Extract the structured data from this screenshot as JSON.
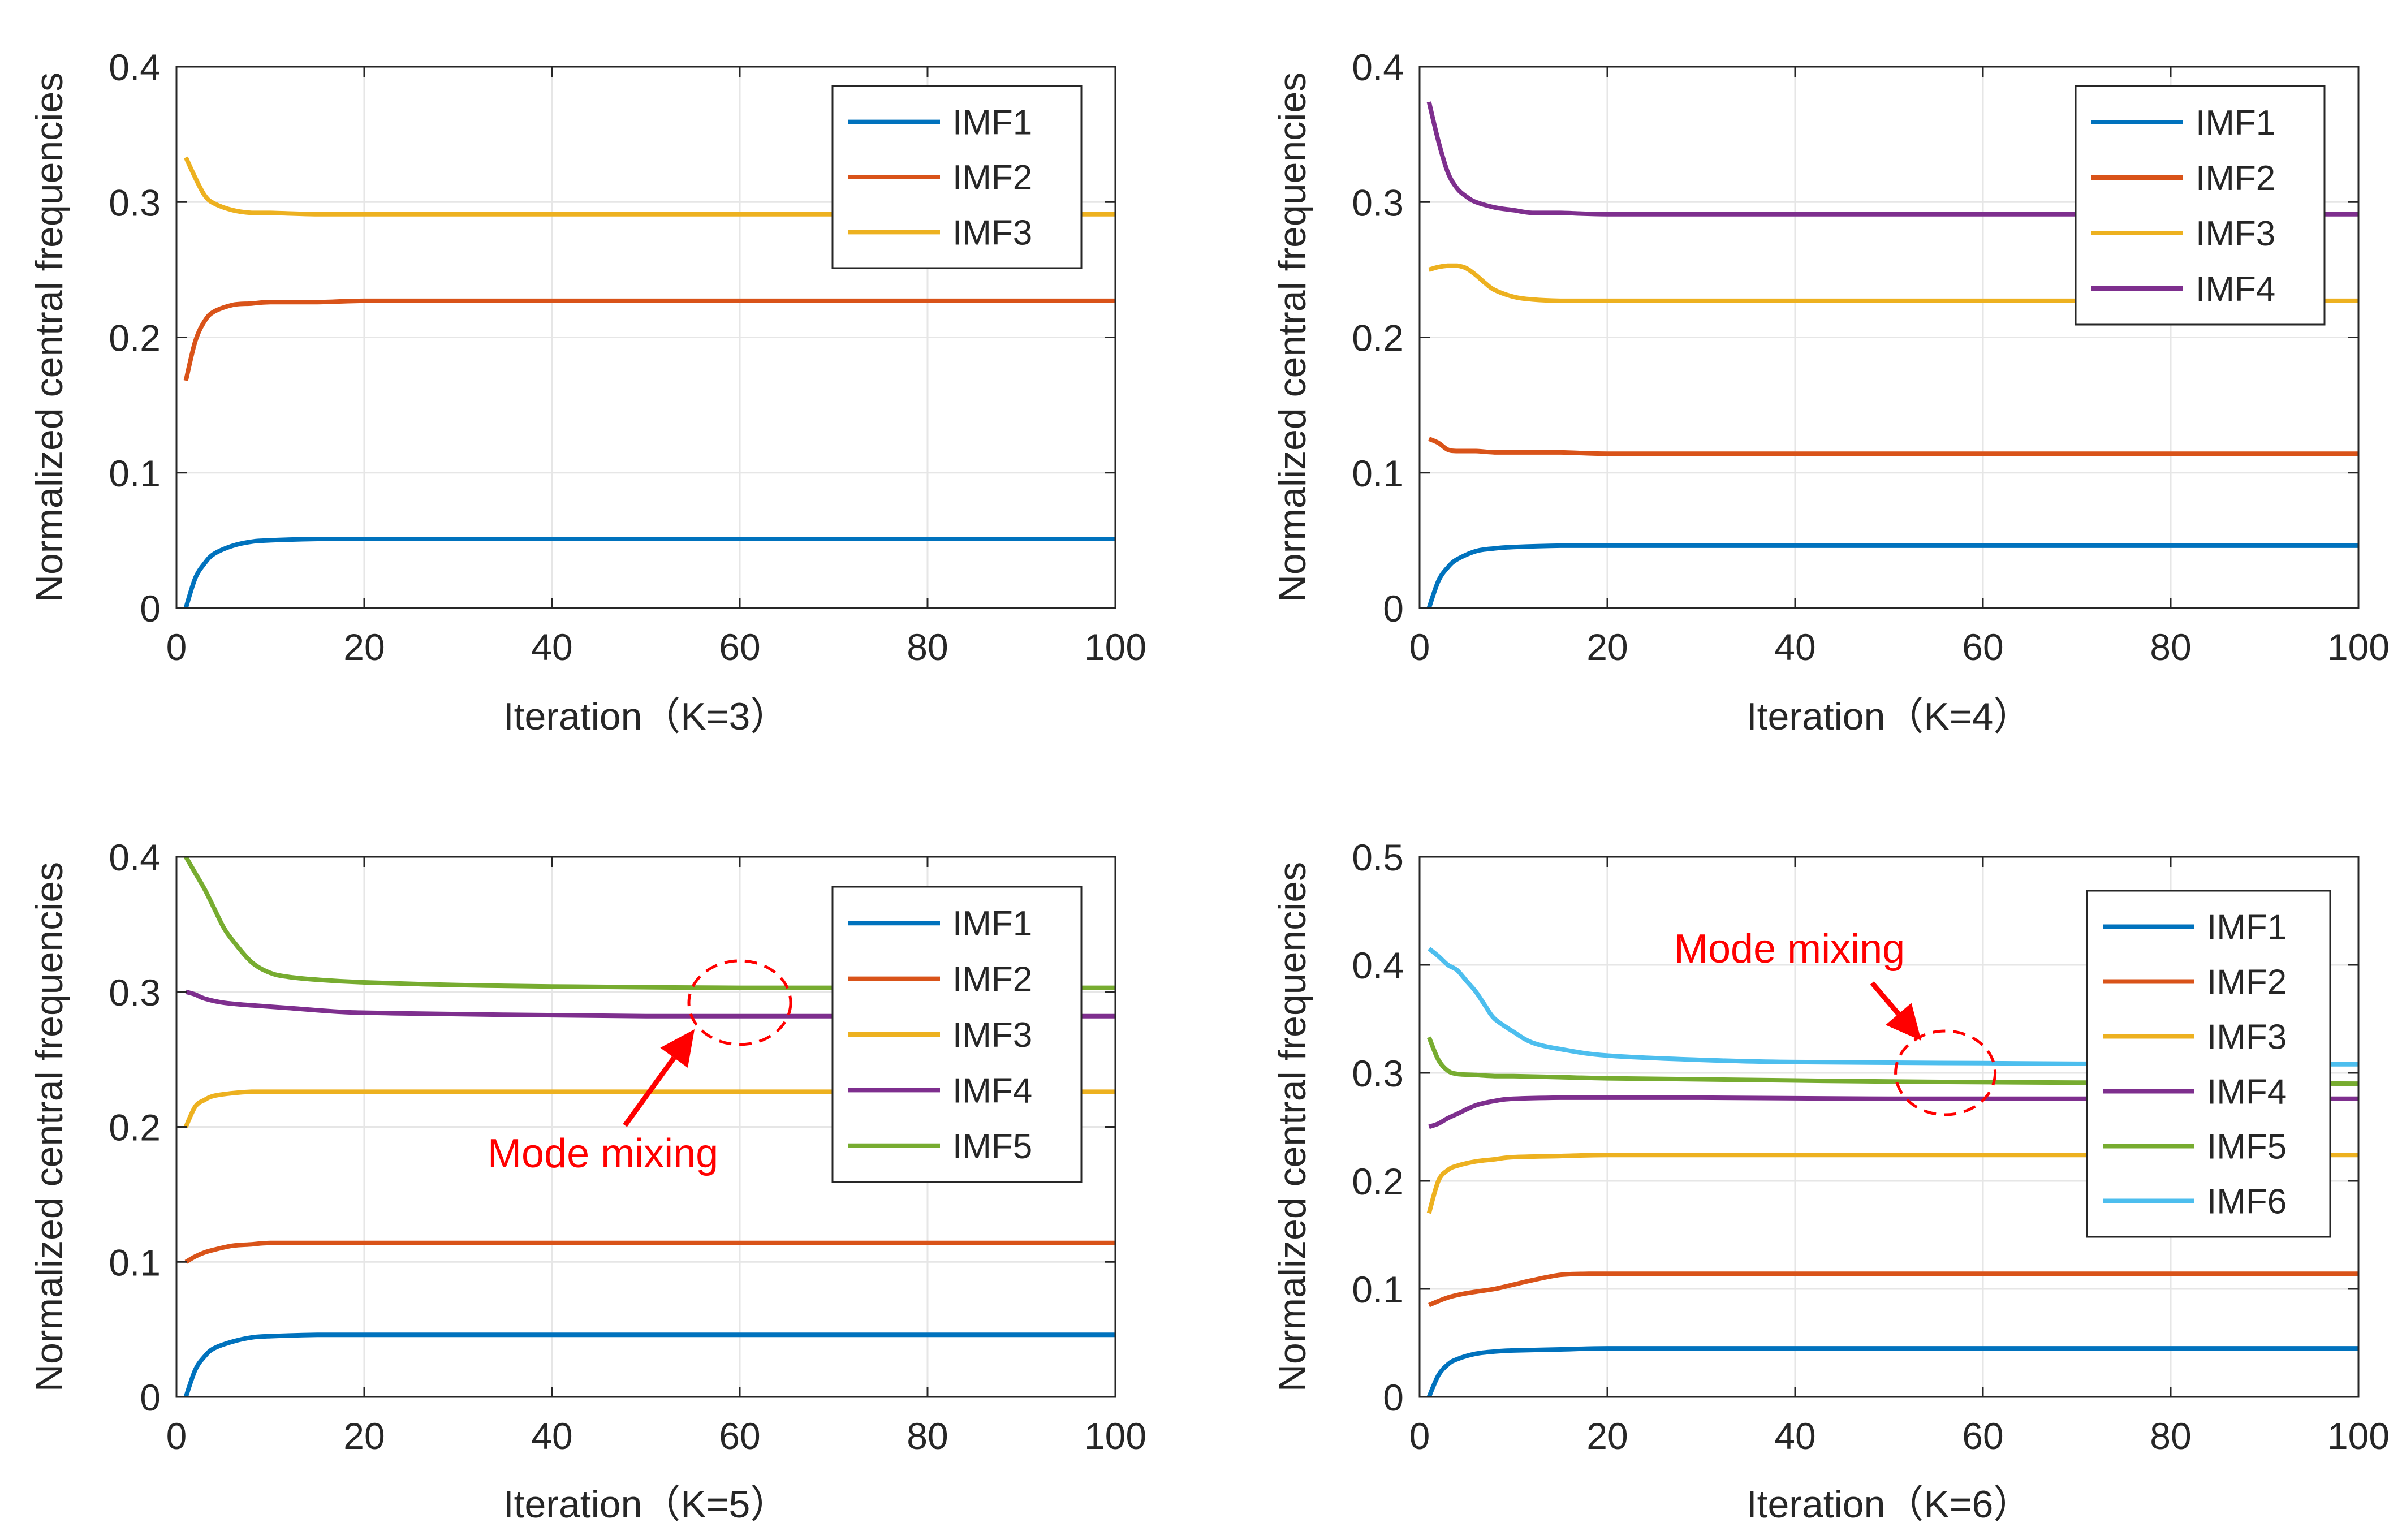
{
  "chart_data": [
    {
      "type": "line",
      "xlabel": "Iteration（K=3）",
      "ylabel": "Normalized central frequencies",
      "xlim": [
        0,
        100
      ],
      "ylim": [
        0,
        0.4
      ],
      "xticks": [
        "0",
        "20",
        "40",
        "60",
        "80",
        "100"
      ],
      "yticks": [
        "0",
        "0.1",
        "0.2",
        "0.3",
        "0.4"
      ],
      "grid": true,
      "legend_position": "top-right",
      "series": [
        {
          "name": "IMF1",
          "color": "#0072BD",
          "x": [
            1,
            2,
            3,
            4,
            6,
            8,
            10,
            15,
            20,
            30,
            50,
            100
          ],
          "values": [
            0,
            0.022,
            0.033,
            0.04,
            0.046,
            0.049,
            0.05,
            0.051,
            0.051,
            0.051,
            0.051,
            0.051
          ]
        },
        {
          "name": "IMF2",
          "color": "#D95319",
          "x": [
            1,
            2,
            3,
            4,
            6,
            8,
            10,
            15,
            20,
            30,
            50,
            100
          ],
          "values": [
            0.168,
            0.197,
            0.212,
            0.219,
            0.224,
            0.225,
            0.226,
            0.226,
            0.227,
            0.227,
            0.227,
            0.227
          ]
        },
        {
          "name": "IMF3",
          "color": "#EDB120",
          "x": [
            1,
            2,
            3,
            4,
            6,
            8,
            10,
            15,
            20,
            30,
            50,
            100
          ],
          "values": [
            0.333,
            0.318,
            0.305,
            0.299,
            0.294,
            0.292,
            0.292,
            0.291,
            0.291,
            0.291,
            0.291,
            0.291
          ]
        }
      ]
    },
    {
      "type": "line",
      "xlabel": "Iteration（K=4）",
      "ylabel": "Normalized central frequencies",
      "xlim": [
        0,
        100
      ],
      "ylim": [
        0,
        0.4
      ],
      "xticks": [
        "0",
        "20",
        "40",
        "60",
        "80",
        "100"
      ],
      "yticks": [
        "0",
        "0.1",
        "0.2",
        "0.3",
        "0.4"
      ],
      "grid": true,
      "legend_position": "top-right",
      "series": [
        {
          "name": "IMF1",
          "color": "#0072BD",
          "x": [
            1,
            2,
            3,
            4,
            6,
            8,
            10,
            15,
            20,
            30,
            50,
            100
          ],
          "values": [
            0,
            0.02,
            0.03,
            0.036,
            0.042,
            0.044,
            0.045,
            0.046,
            0.046,
            0.046,
            0.046,
            0.046
          ]
        },
        {
          "name": "IMF2",
          "color": "#D95319",
          "x": [
            1,
            2,
            3,
            4,
            6,
            8,
            10,
            15,
            20,
            30,
            50,
            100
          ],
          "values": [
            0.125,
            0.122,
            0.117,
            0.116,
            0.116,
            0.115,
            0.115,
            0.115,
            0.114,
            0.114,
            0.114,
            0.114
          ]
        },
        {
          "name": "IMF3",
          "color": "#EDB120",
          "x": [
            1,
            2,
            3,
            4,
            5,
            6,
            7,
            8,
            10,
            12,
            15,
            20,
            30,
            50,
            100
          ],
          "values": [
            0.25,
            0.252,
            0.253,
            0.253,
            0.251,
            0.246,
            0.24,
            0.235,
            0.23,
            0.228,
            0.227,
            0.227,
            0.227,
            0.227,
            0.227
          ]
        },
        {
          "name": "IMF4",
          "color": "#7E2F8E",
          "x": [
            1,
            2,
            3,
            4,
            5,
            6,
            8,
            10,
            12,
            15,
            20,
            30,
            50,
            100
          ],
          "values": [
            0.374,
            0.345,
            0.322,
            0.31,
            0.304,
            0.3,
            0.296,
            0.294,
            0.292,
            0.292,
            0.291,
            0.291,
            0.291,
            0.291
          ]
        }
      ]
    },
    {
      "type": "line",
      "xlabel": "Iteration（K=5）",
      "ylabel": "Normalized central frequencies",
      "xlim": [
        0,
        100
      ],
      "ylim": [
        0,
        0.4
      ],
      "xticks": [
        "0",
        "20",
        "40",
        "60",
        "80",
        "100"
      ],
      "yticks": [
        "0",
        "0.1",
        "0.2",
        "0.3",
        "0.4"
      ],
      "grid": true,
      "legend_position": "top-right",
      "annotation": {
        "text": "Mode mixing",
        "color": "#FF0000",
        "circle_x": 60,
        "circle_y": 0.292
      },
      "series": [
        {
          "name": "IMF1",
          "color": "#0072BD",
          "x": [
            1,
            2,
            3,
            4,
            6,
            8,
            10,
            15,
            20,
            30,
            50,
            100
          ],
          "values": [
            0,
            0.02,
            0.03,
            0.036,
            0.041,
            0.044,
            0.045,
            0.046,
            0.046,
            0.046,
            0.046,
            0.046
          ]
        },
        {
          "name": "IMF2",
          "color": "#D95319",
          "x": [
            1,
            2,
            3,
            4,
            6,
            8,
            10,
            15,
            20,
            30,
            50,
            100
          ],
          "values": [
            0.1,
            0.104,
            0.107,
            0.109,
            0.112,
            0.113,
            0.114,
            0.114,
            0.114,
            0.114,
            0.114,
            0.114
          ]
        },
        {
          "name": "IMF3",
          "color": "#EDB120",
          "x": [
            1,
            2,
            3,
            4,
            6,
            8,
            10,
            15,
            20,
            30,
            50,
            100
          ],
          "values": [
            0.2,
            0.215,
            0.22,
            0.223,
            0.225,
            0.226,
            0.226,
            0.226,
            0.226,
            0.226,
            0.226,
            0.226
          ]
        },
        {
          "name": "IMF4",
          "color": "#7E2F8E",
          "x": [
            1,
            2,
            3,
            5,
            8,
            12,
            18,
            25,
            35,
            50,
            70,
            100
          ],
          "values": [
            0.3,
            0.298,
            0.295,
            0.292,
            0.29,
            0.288,
            0.285,
            0.284,
            0.283,
            0.282,
            0.282,
            0.282
          ]
        },
        {
          "name": "IMF5",
          "color": "#77AC30",
          "x": [
            1,
            2,
            3,
            4,
            5,
            6,
            8,
            10,
            12,
            15,
            20,
            30,
            40,
            60,
            80,
            100
          ],
          "values": [
            0.4,
            0.388,
            0.376,
            0.362,
            0.348,
            0.338,
            0.322,
            0.314,
            0.311,
            0.309,
            0.307,
            0.305,
            0.304,
            0.303,
            0.303,
            0.303
          ]
        }
      ]
    },
    {
      "type": "line",
      "xlabel": "Iteration（K=6）",
      "ylabel": "Normalized central frequencies",
      "xlim": [
        0,
        100
      ],
      "ylim": [
        0,
        0.5
      ],
      "xticks": [
        "0",
        "20",
        "40",
        "60",
        "80",
        "100"
      ],
      "yticks": [
        "0",
        "0.1",
        "0.2",
        "0.3",
        "0.4",
        "0.5"
      ],
      "grid": true,
      "legend_position": "top-right",
      "annotation": {
        "text": "Mode mixing",
        "color": "#FF0000",
        "circle_x": 56,
        "circle_y": 0.3
      },
      "series": [
        {
          "name": "IMF1",
          "color": "#0072BD",
          "x": [
            1,
            2,
            3,
            4,
            6,
            8,
            10,
            15,
            20,
            30,
            50,
            100
          ],
          "values": [
            0,
            0.02,
            0.03,
            0.035,
            0.04,
            0.042,
            0.043,
            0.044,
            0.045,
            0.045,
            0.045,
            0.045
          ]
        },
        {
          "name": "IMF2",
          "color": "#D95319",
          "x": [
            1,
            3,
            5,
            8,
            10,
            12,
            15,
            18,
            20,
            30,
            50,
            100
          ],
          "values": [
            0.085,
            0.092,
            0.096,
            0.1,
            0.104,
            0.108,
            0.113,
            0.114,
            0.114,
            0.114,
            0.114,
            0.114
          ]
        },
        {
          "name": "IMF3",
          "color": "#EDB120",
          "x": [
            1,
            2,
            3,
            4,
            6,
            8,
            10,
            15,
            20,
            30,
            50,
            70,
            100
          ],
          "values": [
            0.17,
            0.2,
            0.21,
            0.214,
            0.218,
            0.22,
            0.222,
            0.223,
            0.224,
            0.224,
            0.224,
            0.224,
            0.224
          ]
        },
        {
          "name": "IMF4",
          "color": "#7E2F8E",
          "x": [
            1,
            2,
            3,
            4,
            6,
            8,
            10,
            15,
            20,
            30,
            50,
            100
          ],
          "values": [
            0.25,
            0.253,
            0.258,
            0.262,
            0.27,
            0.274,
            0.276,
            0.277,
            0.277,
            0.277,
            0.276,
            0.276
          ]
        },
        {
          "name": "IMF5",
          "color": "#77AC30",
          "x": [
            1,
            2,
            3,
            4,
            6,
            8,
            10,
            15,
            20,
            30,
            50,
            70,
            100
          ],
          "values": [
            0.333,
            0.312,
            0.302,
            0.299,
            0.298,
            0.297,
            0.297,
            0.296,
            0.295,
            0.294,
            0.292,
            0.291,
            0.29
          ]
        },
        {
          "name": "IMF6",
          "color": "#4DBEEE",
          "x": [
            1,
            2,
            3,
            4,
            5,
            6,
            7,
            8,
            10,
            12,
            15,
            20,
            30,
            40,
            60,
            80,
            100
          ],
          "values": [
            0.415,
            0.408,
            0.4,
            0.395,
            0.385,
            0.375,
            0.362,
            0.35,
            0.338,
            0.328,
            0.322,
            0.316,
            0.312,
            0.31,
            0.309,
            0.308,
            0.308
          ]
        }
      ]
    }
  ]
}
